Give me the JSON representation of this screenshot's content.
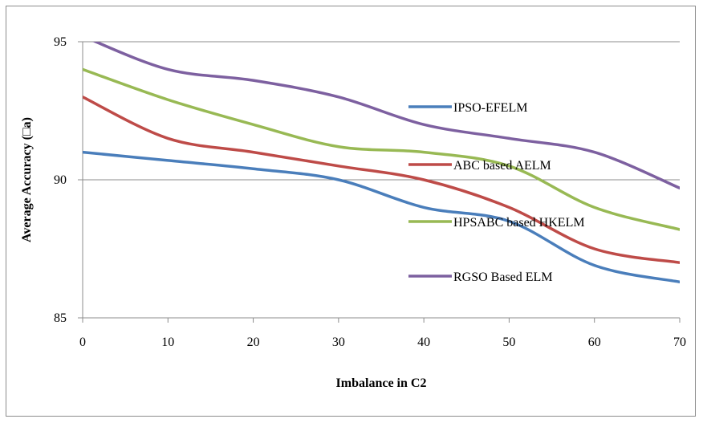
{
  "chart_data": {
    "type": "line",
    "xlabel": "Imbalance in C2",
    "ylabel": "Average Accuracy (□a)",
    "xlim": [
      0,
      70
    ],
    "ylim": [
      85,
      95
    ],
    "x_ticks": [
      0,
      10,
      20,
      30,
      40,
      50,
      60,
      70
    ],
    "y_ticks": [
      85,
      90,
      95
    ],
    "grid": "horizontal",
    "legend_position": "right",
    "x": [
      0,
      10,
      20,
      30,
      40,
      50,
      60,
      70
    ],
    "series": [
      {
        "name": "IPSO-EFELM",
        "color": "#4a7ebb",
        "values": [
          91.0,
          90.7,
          90.4,
          90.0,
          89.0,
          88.5,
          86.9,
          86.3
        ]
      },
      {
        "name": "ABC based AELM",
        "color": "#be4b48",
        "values": [
          93.0,
          91.5,
          91.0,
          90.5,
          90.0,
          89.0,
          87.5,
          87.0
        ]
      },
      {
        "name": "HPSABC based HKELM",
        "color": "#98b954",
        "values": [
          94.0,
          92.9,
          92.0,
          91.2,
          91.0,
          90.5,
          89.0,
          88.2
        ]
      },
      {
        "name": "RGSO Based ELM",
        "color": "#7d60a0",
        "values": [
          95.2,
          94.0,
          93.6,
          93.0,
          92.0,
          91.5,
          91.0,
          89.7
        ]
      }
    ]
  }
}
